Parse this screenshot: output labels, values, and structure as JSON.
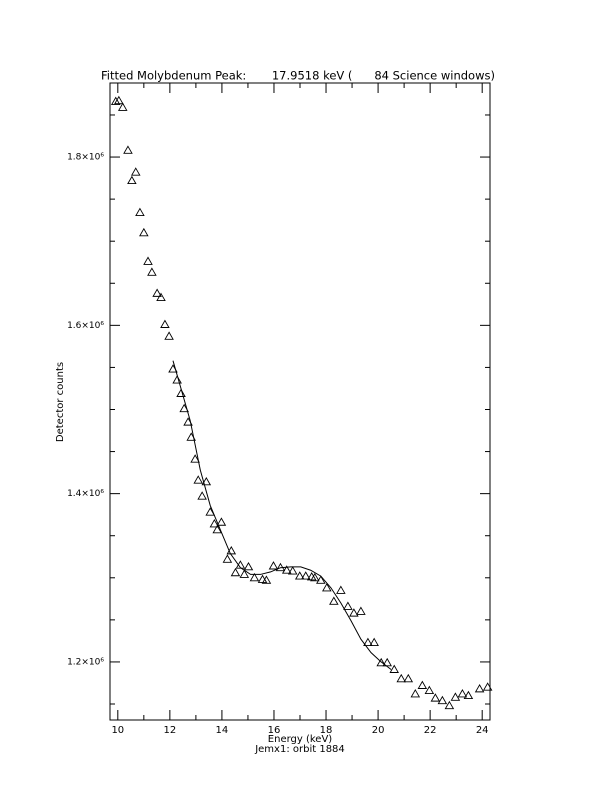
{
  "chart_data": {
    "type": "scatter",
    "title": "Fitted Molybdenum Peak:       17.9518 keV (      84 Science windows)",
    "x_label": "Energy (keV)",
    "subtitle": "Jemx1: orbit 1884",
    "y_label": "Detector counts",
    "xlim": [
      9.7,
      24.3
    ],
    "ylim": [
      1131000,
      1888000
    ],
    "xticks": [
      10,
      12,
      14,
      16,
      18,
      20,
      22,
      24
    ],
    "xminor_ticks": [
      11,
      13,
      15,
      17,
      19,
      21,
      23
    ],
    "yticks": [
      {
        "value": 1200000,
        "label": "1.2×10⁶"
      },
      {
        "value": 1400000,
        "label": "1.4×10⁶"
      },
      {
        "value": 1600000,
        "label": "1.6×10⁶"
      },
      {
        "value": 1800000,
        "label": "1.8×10⁶"
      }
    ],
    "yminor_ticks": [
      1150000,
      1250000,
      1300000,
      1350000,
      1450000,
      1500000,
      1550000,
      1650000,
      1700000,
      1750000,
      1850000
    ],
    "series": [
      {
        "type": "scatter",
        "marker": "triangle",
        "color": "#000000",
        "x": [
          9.92,
          10.04,
          10.19,
          10.39,
          10.54,
          10.69,
          10.85,
          11.0,
          11.16,
          11.31,
          11.51,
          11.66,
          11.81,
          11.97,
          12.12,
          12.28,
          12.43,
          12.55,
          12.7,
          12.82,
          12.97,
          13.09,
          13.24,
          13.4,
          13.55,
          13.71,
          13.82,
          13.98,
          14.21,
          14.36,
          14.52,
          14.71,
          14.86,
          15.02,
          15.25,
          15.56,
          15.71,
          15.98,
          16.25,
          16.49,
          16.72,
          16.99,
          17.22,
          17.45,
          17.57,
          17.8,
          18.03,
          18.3,
          18.57,
          18.84,
          19.07,
          19.34,
          19.61,
          19.85,
          20.12,
          20.35,
          20.62,
          20.89,
          21.16,
          21.43,
          21.7,
          21.97,
          22.2,
          22.47,
          22.74,
          22.97,
          23.24,
          23.47,
          23.9,
          24.21
        ],
        "values": [
          1866000,
          1867000,
          1859000,
          1808000,
          1772000,
          1782000,
          1734000,
          1710000,
          1676000,
          1663000,
          1638000,
          1633000,
          1601000,
          1587000,
          1548000,
          1535000,
          1519000,
          1501000,
          1485000,
          1467000,
          1441000,
          1416000,
          1397000,
          1414000,
          1378000,
          1364000,
          1357000,
          1366000,
          1322000,
          1332000,
          1306000,
          1315000,
          1304000,
          1313000,
          1300000,
          1298000,
          1297000,
          1314000,
          1312000,
          1309000,
          1308000,
          1302000,
          1302000,
          1301000,
          1300000,
          1297000,
          1288000,
          1272000,
          1285000,
          1266000,
          1258000,
          1260000,
          1223000,
          1223000,
          1199000,
          1199000,
          1191000,
          1180000,
          1180000,
          1162000,
          1172000,
          1166000,
          1157000,
          1154000,
          1148000,
          1158000,
          1162000,
          1160000,
          1168000,
          1170000
        ]
      },
      {
        "type": "line",
        "color": "#000000",
        "x": [
          12.12,
          12.39,
          12.78,
          13.17,
          13.55,
          13.94,
          14.32,
          14.71,
          15.1,
          15.48,
          15.87,
          16.25,
          16.64,
          17.03,
          17.41,
          17.8,
          18.19,
          18.57,
          18.96,
          19.34,
          19.73,
          20.12,
          20.5
        ],
        "values": [
          1558000,
          1529000,
          1487000,
          1428000,
          1386000,
          1357000,
          1329000,
          1312000,
          1304000,
          1304000,
          1307000,
          1312000,
          1313000,
          1313000,
          1309000,
          1302000,
          1288000,
          1270000,
          1249000,
          1227000,
          1211000,
          1200000,
          1191000
        ]
      }
    ]
  }
}
